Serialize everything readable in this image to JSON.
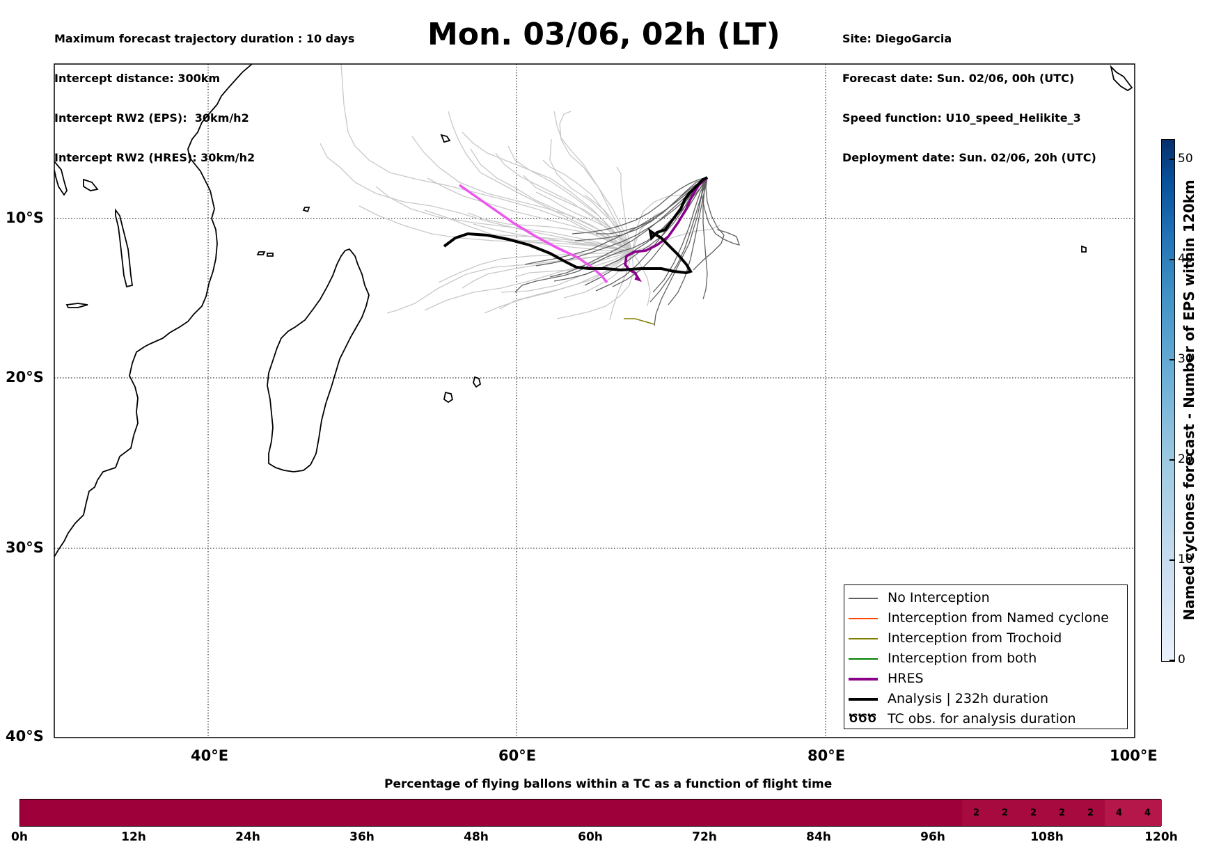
{
  "header_left": {
    "line1": "Maximum forecast trajectory duration : 10 days",
    "line2": "Intercept distance: 300km",
    "line3": "Intercept RW2 (EPS):  30km/h2",
    "line4": "Intercept RW2 (HRES): 30km/h2"
  },
  "title": "Mon. 03/06, 02h (LT)",
  "header_right": {
    "line1": "Site: DiegoGarcia",
    "line2": "Forecast date: Sun. 02/06, 00h (UTC)",
    "line3": "Speed function: U10_speed_Helikite_3",
    "line4": "Deployment date: Sun. 02/06, 20h (UTC)"
  },
  "map": {
    "lon_range": [
      30,
      100
    ],
    "lat_range": [
      -40,
      0.5
    ],
    "lat_labels": [
      "10°S",
      "20°S",
      "30°S",
      "40°S"
    ],
    "lon_labels": [
      "40°E",
      "60°E",
      "80°E",
      "100°E"
    ],
    "gridlines": "dotted",
    "coast_color": "#000000"
  },
  "tracks": {
    "eps_color": "#c8c8c8",
    "no_interception_color": "#606060",
    "hres_color": "#8b008b",
    "hres_light_color": "#ee55ee",
    "analysis_color": "#000000",
    "trochoid_color": "#808000"
  },
  "legend": {
    "items": [
      {
        "label": "No Interception",
        "color": "#606060"
      },
      {
        "label": "Interception from Named cyclone",
        "color": "#ff4500"
      },
      {
        "label": "Interception from Trochoid",
        "color": "#808000"
      },
      {
        "label": "Interception from both",
        "color": "#008000"
      },
      {
        "label": "HRES",
        "color": "#8b008b"
      },
      {
        "label": "Analysis | 232h duration",
        "color": "#000000"
      },
      {
        "label": "TC obs. for analysis duration",
        "glyph": "ԾԾԾ"
      }
    ]
  },
  "colorbar": {
    "title": "Named cyclones forecast - Number of EPS within 120km",
    "ticks": [
      "0",
      "10",
      "20",
      "30",
      "40",
      "50"
    ],
    "range": [
      0,
      52
    ]
  },
  "percentage_bar": {
    "title": "Percentage of flying ballons within a TC as a function of flight time",
    "ticks": [
      "0h",
      "12h",
      "24h",
      "36h",
      "48h",
      "60h",
      "72h",
      "84h",
      "96h",
      "108h",
      "120h"
    ],
    "base_color": "#9e003a",
    "cells": [
      {
        "from_h": 99,
        "to_h": 102,
        "value": "2",
        "color": "#a70a3e"
      },
      {
        "from_h": 102,
        "to_h": 105,
        "value": "2",
        "color": "#a70a3e"
      },
      {
        "from_h": 105,
        "to_h": 108,
        "value": "2",
        "color": "#a70a3e"
      },
      {
        "from_h": 108,
        "to_h": 111,
        "value": "2",
        "color": "#a70a3e"
      },
      {
        "from_h": 111,
        "to_h": 114,
        "value": "2",
        "color": "#a70a3e"
      },
      {
        "from_h": 114,
        "to_h": 117,
        "value": "4",
        "color": "#b5174a"
      },
      {
        "from_h": 117,
        "to_h": 120,
        "value": "4",
        "color": "#b5174a"
      }
    ]
  }
}
